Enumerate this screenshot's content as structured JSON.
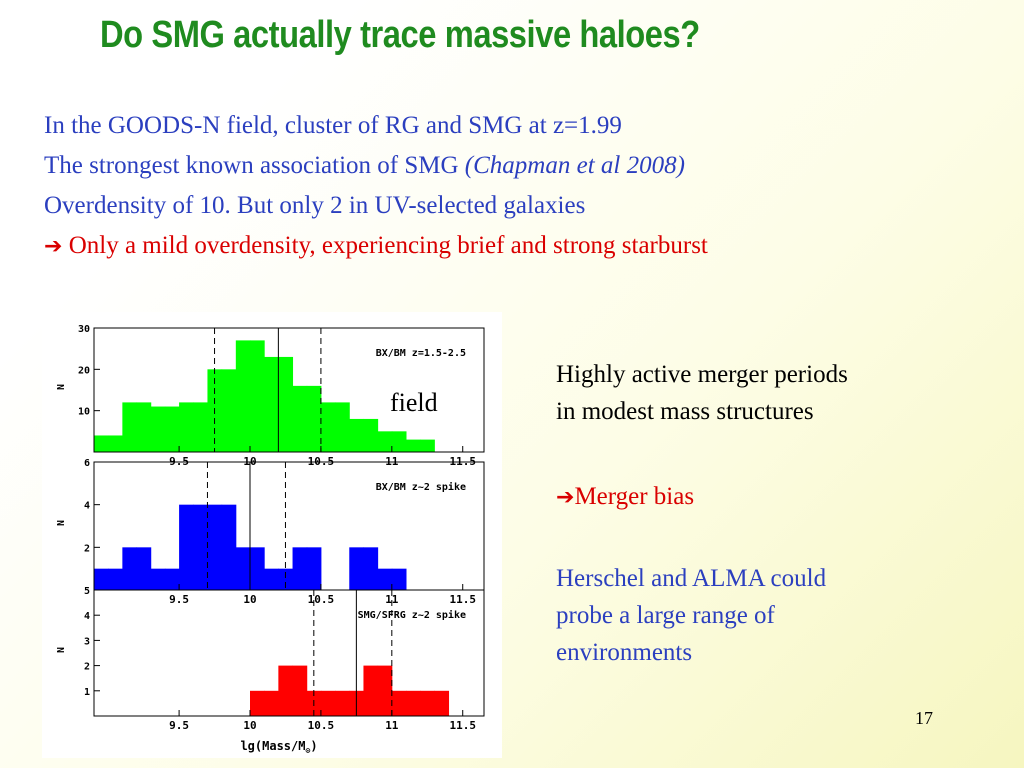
{
  "slide": {
    "title": "Do SMG actually trace massive haloes?",
    "bullet1": "In the GOODS-N field, cluster of RG and SMG at z=1.99",
    "bullet2_main": "The strongest known association of SMG ",
    "bullet2_italic": "(Chapman et al 2008)",
    "bullet3": "Overdensity of 10. But only 2 in UV-selected galaxies",
    "bullet4": "Only a mild overdensity, experiencing brief and strong starburst",
    "field_label": "field",
    "right1_line1": "Highly active merger periods",
    "right1_line2": "in modest mass structures",
    "right2": "Merger bias",
    "right3_line1": "Herschel and ALMA could",
    "right3_line2": "probe a large range of",
    "right3_line3": "environments",
    "page_number": "17"
  },
  "colors": {
    "title": "#1f8b1f",
    "text_blue": "#2b3fbf",
    "text_red": "#d90000"
  },
  "chart_data": [
    {
      "type": "bar",
      "label": "BX/BM z=1.5-2.5",
      "color": "#00ff00",
      "bin_edges": [
        8.9,
        9.0,
        9.1,
        9.2,
        9.3,
        9.4,
        9.5,
        9.6,
        9.7,
        9.8,
        9.9,
        10.0,
        10.1,
        10.2,
        10.3,
        10.4,
        10.5,
        10.6,
        10.7,
        10.8,
        10.9,
        11.0,
        11.1,
        11.2,
        11.3,
        11.4
      ],
      "values": [
        4,
        4,
        12,
        12,
        11,
        11,
        12,
        12,
        20,
        20,
        27,
        27,
        23,
        23,
        16,
        16,
        12,
        12,
        8,
        8,
        5,
        5,
        3,
        3,
        0
      ],
      "ylim": [
        0,
        30
      ],
      "yticks": [
        "10",
        "20",
        "30"
      ],
      "ylabel": "N",
      "xticks": [
        "9.5",
        "10",
        "10.5",
        "11",
        "11.5"
      ],
      "dashed": [
        9.75,
        10.5
      ],
      "solid": [
        10.2
      ]
    },
    {
      "type": "bar",
      "label": "BX/BM z~2 spike",
      "color": "#0000ff",
      "bin_edges": [
        8.9,
        9.0,
        9.1,
        9.2,
        9.3,
        9.4,
        9.5,
        9.6,
        9.7,
        9.8,
        9.9,
        10.0,
        10.1,
        10.2,
        10.3,
        10.4,
        10.5,
        10.6,
        10.7,
        10.8,
        10.9,
        11.0,
        11.1,
        11.2,
        11.3,
        11.4
      ],
      "values": [
        1,
        1,
        2,
        2,
        1,
        1,
        4,
        4,
        4,
        4,
        2,
        2,
        1,
        1,
        2,
        2,
        0,
        0,
        2,
        2,
        1,
        1,
        0,
        0,
        0
      ],
      "ylim": [
        0,
        6
      ],
      "yticks": [
        "2",
        "4",
        "6"
      ],
      "ylabel": "N",
      "xticks": [
        "9.5",
        "10",
        "10.5",
        "11",
        "11.5"
      ],
      "dashed": [
        9.7,
        10.25
      ],
      "solid": [
        10.0
      ]
    },
    {
      "type": "bar",
      "label": "SMG/SFRG z~2 spike",
      "color": "#ff0000",
      "bin_edges": [
        8.9,
        9.0,
        9.1,
        9.2,
        9.3,
        9.4,
        9.5,
        9.6,
        9.7,
        9.8,
        9.9,
        10.0,
        10.1,
        10.2,
        10.3,
        10.4,
        10.5,
        10.6,
        10.7,
        10.8,
        10.9,
        11.0,
        11.1,
        11.2,
        11.3,
        11.4,
        11.5,
        11.6
      ],
      "values": [
        0,
        0,
        0,
        0,
        0,
        0,
        0,
        0,
        0,
        0,
        0,
        1,
        1,
        2,
        2,
        1,
        1,
        1,
        1,
        2,
        2,
        1,
        1,
        1,
        1,
        0,
        0
      ],
      "ylim": [
        0,
        5
      ],
      "yticks": [
        "1",
        "2",
        "3",
        "4",
        "5"
      ],
      "ylabel": "N",
      "xticks": [
        "9.5",
        "10",
        "10.5",
        "11",
        "11.5"
      ],
      "xlabel": "lg(Mass/M",
      "xlabel_sub": "⊙",
      "xlabel_end": ")",
      "dashed": [
        10.45,
        11.0
      ],
      "solid": [
        10.75
      ]
    }
  ]
}
